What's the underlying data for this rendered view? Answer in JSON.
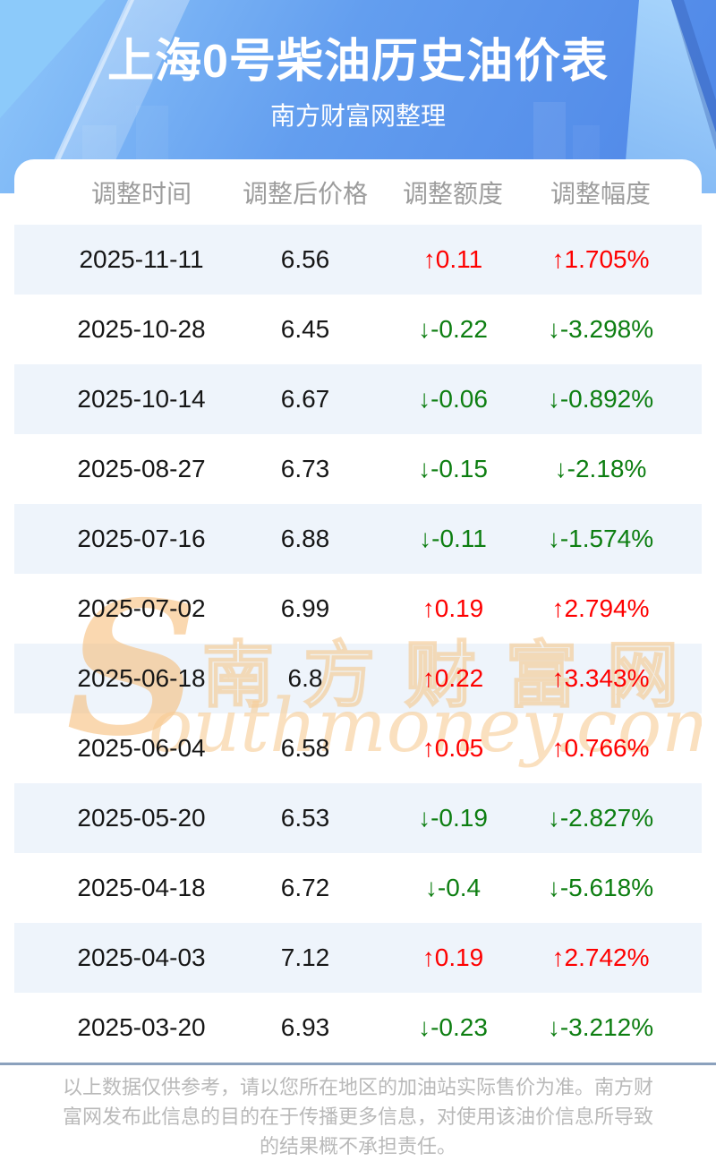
{
  "hero": {
    "title": "上海0号柴油历史油价表",
    "subtitle": "南方财富网整理",
    "bg_gradient_top": "#8fc7fa",
    "bg_gradient_bottom": "#4e86e7"
  },
  "chart_data": {
    "type": "table",
    "title": "上海0号柴油历史油价表",
    "subtitle": "南方财富网整理",
    "columns": [
      "调整时间",
      "调整后价格",
      "调整额度",
      "调整幅度"
    ],
    "rows": [
      {
        "date": "2025-11-11",
        "price": "6.56",
        "change": "↑0.11",
        "percent": "↑1.705%",
        "direction": "up"
      },
      {
        "date": "2025-10-28",
        "price": "6.45",
        "change": "↓-0.22",
        "percent": "↓-3.298%",
        "direction": "down"
      },
      {
        "date": "2025-10-14",
        "price": "6.67",
        "change": "↓-0.06",
        "percent": "↓-0.892%",
        "direction": "down"
      },
      {
        "date": "2025-08-27",
        "price": "6.73",
        "change": "↓-0.15",
        "percent": "↓-2.18%",
        "direction": "down"
      },
      {
        "date": "2025-07-16",
        "price": "6.88",
        "change": "↓-0.11",
        "percent": "↓-1.574%",
        "direction": "down"
      },
      {
        "date": "2025-07-02",
        "price": "6.99",
        "change": "↑0.19",
        "percent": "↑2.794%",
        "direction": "up"
      },
      {
        "date": "2025-06-18",
        "price": "6.8",
        "change": "↑0.22",
        "percent": "↑3.343%",
        "direction": "up"
      },
      {
        "date": "2025-06-04",
        "price": "6.58",
        "change": "↑0.05",
        "percent": "↑0.766%",
        "direction": "up"
      },
      {
        "date": "2025-05-20",
        "price": "6.53",
        "change": "↓-0.19",
        "percent": "↓-2.827%",
        "direction": "down"
      },
      {
        "date": "2025-04-18",
        "price": "6.72",
        "change": "↓-0.4",
        "percent": "↓-5.618%",
        "direction": "down"
      },
      {
        "date": "2025-04-03",
        "price": "7.12",
        "change": "↑0.19",
        "percent": "↑2.742%",
        "direction": "up"
      },
      {
        "date": "2025-03-20",
        "price": "6.93",
        "change": "↓-0.23",
        "percent": "↓-3.212%",
        "direction": "down"
      }
    ]
  },
  "watermark": {
    "symbol": "S",
    "cn": "南方财富网",
    "en": "outhmoney.com",
    "color": "#f6bc78"
  },
  "footer": {
    "lines": [
      "以上数据仅供参考，请以您所在地区的加油站实际售价为准。南方财",
      "富网发布此信息的目的在于传播更多信息，对使用该油价信息所导致",
      "的结果概不承担责任。"
    ]
  },
  "colors": {
    "up": "#fe0000",
    "down": "#0d7e11",
    "stripe": "#eef4fb",
    "divider": "#8ba1bd",
    "header_text": "#9c9c9c",
    "footer_text": "#b9b9b9"
  }
}
